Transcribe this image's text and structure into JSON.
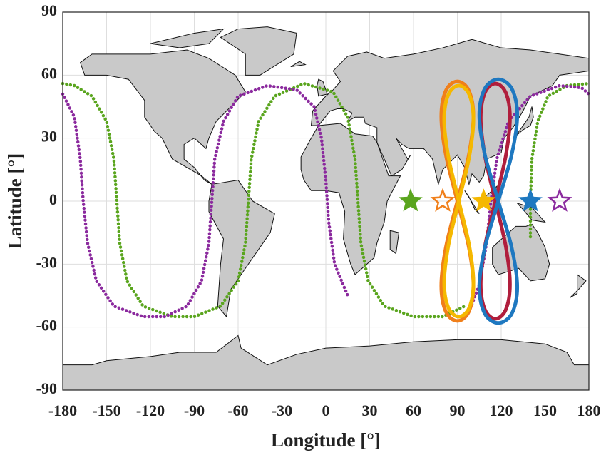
{
  "chart_data": {
    "type": "line",
    "xlabel": "Longitude [°]",
    "ylabel": "Latitude [°]",
    "xlim": [
      -180,
      180
    ],
    "ylim": [
      -90,
      90
    ],
    "xticks": [
      -180,
      -150,
      -120,
      -90,
      -60,
      -30,
      0,
      30,
      60,
      90,
      120,
      150,
      180
    ],
    "yticks": [
      -90,
      -60,
      -30,
      0,
      30,
      60,
      90
    ],
    "grid": true,
    "series": [
      {
        "color": "#5aa51e",
        "style": "dotted",
        "x": [
          140,
          140,
          141,
          145,
          152,
          165,
          180,
          null,
          -180,
          -172,
          -160,
          -150,
          -145,
          -143,
          -141,
          -136,
          -125,
          -105,
          -90,
          -72,
          -60,
          -55,
          -53,
          -51,
          -46,
          -35,
          -15,
          5,
          15,
          20,
          22,
          24,
          29,
          40,
          60,
          80,
          95
        ],
        "y": [
          -17,
          0,
          20,
          38,
          50,
          55,
          56,
          null,
          56,
          55,
          50,
          38,
          20,
          0,
          -20,
          -38,
          -50,
          -55,
          -55,
          -50,
          -38,
          -20,
          0,
          20,
          38,
          50,
          56,
          52,
          40,
          20,
          0,
          -20,
          -38,
          -50,
          -55,
          -55,
          -50
        ]
      },
      {
        "color": "#8b2a9e",
        "style": "dotted",
        "x": [
          -180,
          -172,
          -168,
          -166,
          -163,
          -157,
          -145,
          -125,
          -110,
          -95,
          -85,
          -80,
          -78,
          -76,
          -70,
          -60,
          -40,
          -20,
          -8,
          -3,
          0,
          2,
          6,
          15,
          null,
          100,
          105,
          110,
          113,
          117,
          125,
          140,
          160,
          175,
          180
        ],
        "y": [
          51,
          40,
          20,
          0,
          -20,
          -38,
          -50,
          -55,
          -55,
          -50,
          -38,
          -20,
          0,
          20,
          38,
          50,
          55,
          53,
          45,
          30,
          10,
          -10,
          -30,
          -45,
          null,
          -49,
          -40,
          -20,
          0,
          20,
          38,
          50,
          55,
          54,
          51
        ]
      },
      {
        "color": "#f07f1a",
        "style": "solid",
        "x": [
          90,
          97.8,
          101,
          97.8,
          90,
          82.2,
          79,
          82.2,
          90,
          97.8,
          101,
          97.8,
          90,
          82.2,
          79,
          82.2,
          90
        ],
        "y": [
          0,
          21.8,
          40.3,
          52.7,
          57,
          52.7,
          40.3,
          21.8,
          0,
          -21.8,
          -40.3,
          -52.7,
          -57,
          -52.7,
          -40.3,
          -21.8,
          0
        ]
      },
      {
        "color": "#f5b800",
        "style": "solid",
        "x": [
          91,
          98.1,
          101,
          98.1,
          91,
          83.9,
          81,
          83.9,
          91,
          98.1,
          101,
          98.1,
          91,
          83.9,
          81,
          83.9,
          91
        ],
        "y": [
          0,
          21,
          38.9,
          50.8,
          55,
          50.8,
          38.9,
          21,
          0,
          -21,
          -38.9,
          -50.8,
          -55,
          -50.8,
          -38.9,
          -21,
          0
        ]
      },
      {
        "color": "#b01e3c",
        "style": "solid",
        "x": [
          116,
          123.1,
          126,
          123.1,
          116,
          108.9,
          106,
          108.9,
          116,
          123.1,
          126,
          123.1,
          116,
          108.9,
          106,
          108.9,
          116
        ],
        "y": [
          0,
          21.4,
          39.6,
          51.7,
          56,
          51.7,
          39.6,
          21.4,
          0,
          -21.4,
          -39.6,
          -51.7,
          -56,
          -51.7,
          -39.6,
          -21.4,
          0
        ]
      },
      {
        "color": "#1e78c0",
        "style": "solid",
        "x": [
          118,
          127.2,
          131,
          127.2,
          118,
          108.8,
          105,
          108.8,
          118,
          127.2,
          131,
          127.2,
          118,
          108.8,
          105,
          108.8,
          118
        ],
        "y": [
          0,
          22.2,
          41,
          53.6,
          58,
          53.6,
          41,
          22.2,
          0,
          -22.2,
          -41,
          -53.6,
          -58,
          -53.6,
          -41,
          -22.2,
          0
        ]
      }
    ],
    "stars": [
      {
        "x": 58,
        "y": 0,
        "color": "#5aa51e",
        "filled": true
      },
      {
        "x": 80,
        "y": 0,
        "color": "#f07f1a",
        "filled": false
      },
      {
        "x": 108,
        "y": 0,
        "color": "#f5b800",
        "filled": true
      },
      {
        "x": 140,
        "y": 0,
        "color": "#1e78c0",
        "filled": true
      },
      {
        "x": 160,
        "y": 0,
        "color": "#8b2a9e",
        "filled": false
      }
    ]
  }
}
